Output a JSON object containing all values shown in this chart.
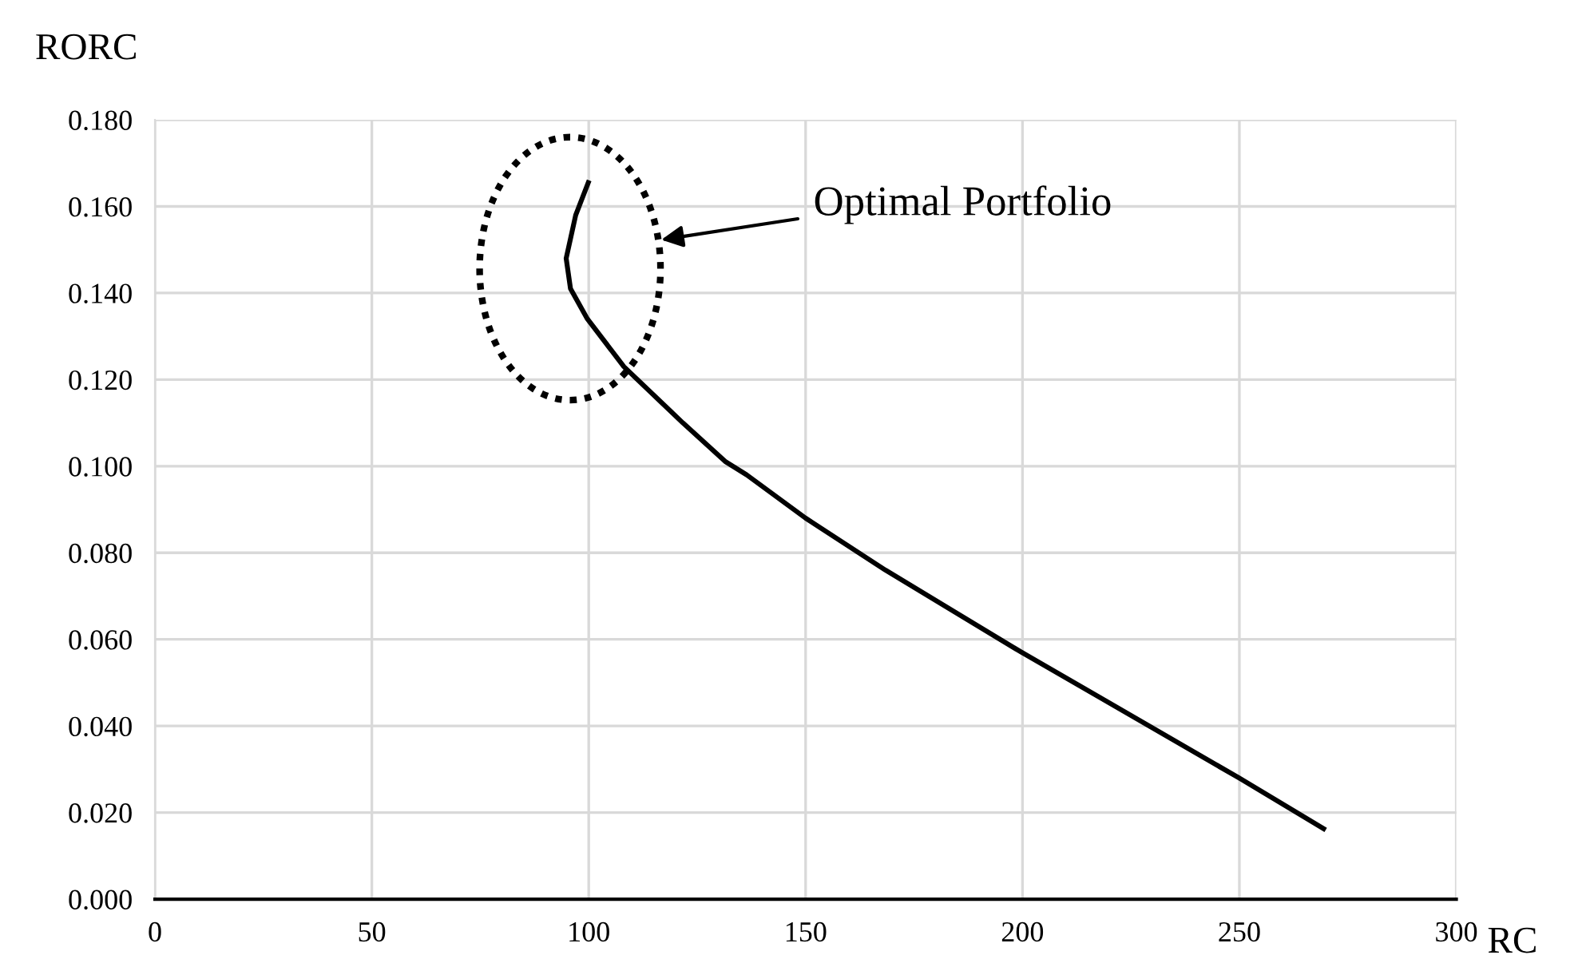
{
  "chart_data": {
    "type": "line",
    "xlabel": "RC",
    "ylabel": "RORC",
    "series": [
      {
        "color": "#000000",
        "x": [
          100.1,
          97,
          94.8,
          95.8,
          99.7,
          108.1,
          121.7,
          131.6,
          136.4,
          150,
          168.4,
          199.8,
          217.1,
          249.9,
          269.9
        ],
        "values": [
          0.166,
          0.158,
          0.148,
          0.141,
          0.134,
          0.123,
          0.11,
          0.101,
          0.098,
          0.088,
          0.076,
          0.057,
          0.047,
          0.028,
          0.016
        ]
      }
    ],
    "xlim": [
      0,
      300
    ],
    "xticks": [
      0,
      50,
      100,
      150,
      200,
      250,
      300
    ],
    "ylim": [
      0,
      0.18
    ],
    "yticks": [
      {
        "value": 0,
        "label": "0.000"
      },
      {
        "value": 0.02,
        "label": "0.020"
      },
      {
        "value": 0.04,
        "label": "0.040"
      },
      {
        "value": 0.06,
        "label": "0.060"
      },
      {
        "value": 0.08,
        "label": "0.080"
      },
      {
        "value": 0.1,
        "label": "0.100"
      },
      {
        "value": 0.12,
        "label": "0.120"
      },
      {
        "value": 0.14,
        "label": "0.140"
      },
      {
        "value": 0.16,
        "label": "0.160"
      },
      {
        "value": 0.18,
        "label": "0.180"
      }
    ],
    "grid": true,
    "line_style": "solid",
    "marker": "none",
    "annotations": [
      "Optimal Portfolio"
    ]
  }
}
